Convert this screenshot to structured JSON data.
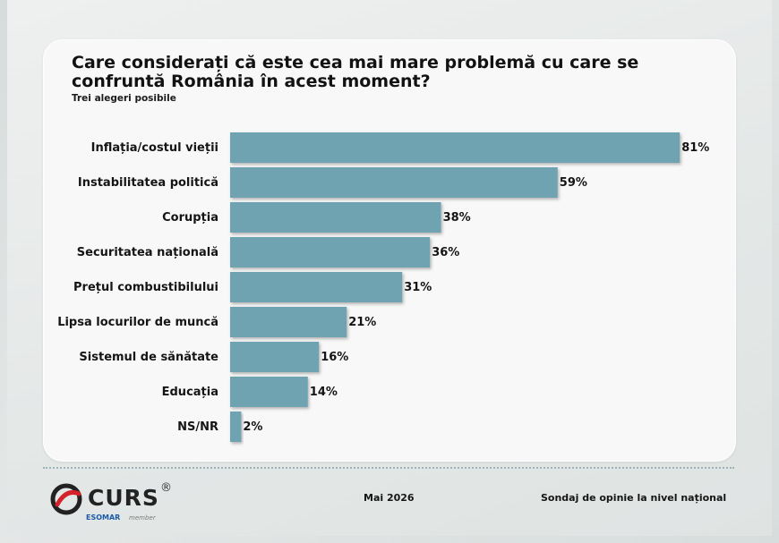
{
  "title": "Care considerați că este cea mai mare problemă cu care se confruntă România în acest moment?",
  "subtitle": "Trei alegeri posibile",
  "chart_data": {
    "type": "bar",
    "orientation": "horizontal",
    "categories": [
      "Inflația/costul vieții",
      "Instabilitatea politică",
      "Corupția",
      "Securitatea națională",
      "Prețul combustibilului",
      "Lipsa locurilor de muncă",
      "Sistemul de sănătate",
      "Educația",
      "NS/NR"
    ],
    "values": [
      81,
      59,
      38,
      36,
      31,
      21,
      16,
      14,
      2
    ],
    "value_labels": [
      "81%",
      "59%",
      "38%",
      "36%",
      "31%",
      "21%",
      "16%",
      "14%",
      "2%"
    ],
    "xlim": [
      0,
      100
    ],
    "grid": false,
    "bar_color": "#6fa3b1"
  },
  "footer": {
    "brand": "CURS",
    "brand_registered": "®",
    "esomar": "ESOMAR",
    "member": "member",
    "date": "Mai 2026",
    "source": "Sondaj de opinie la nivel național"
  }
}
